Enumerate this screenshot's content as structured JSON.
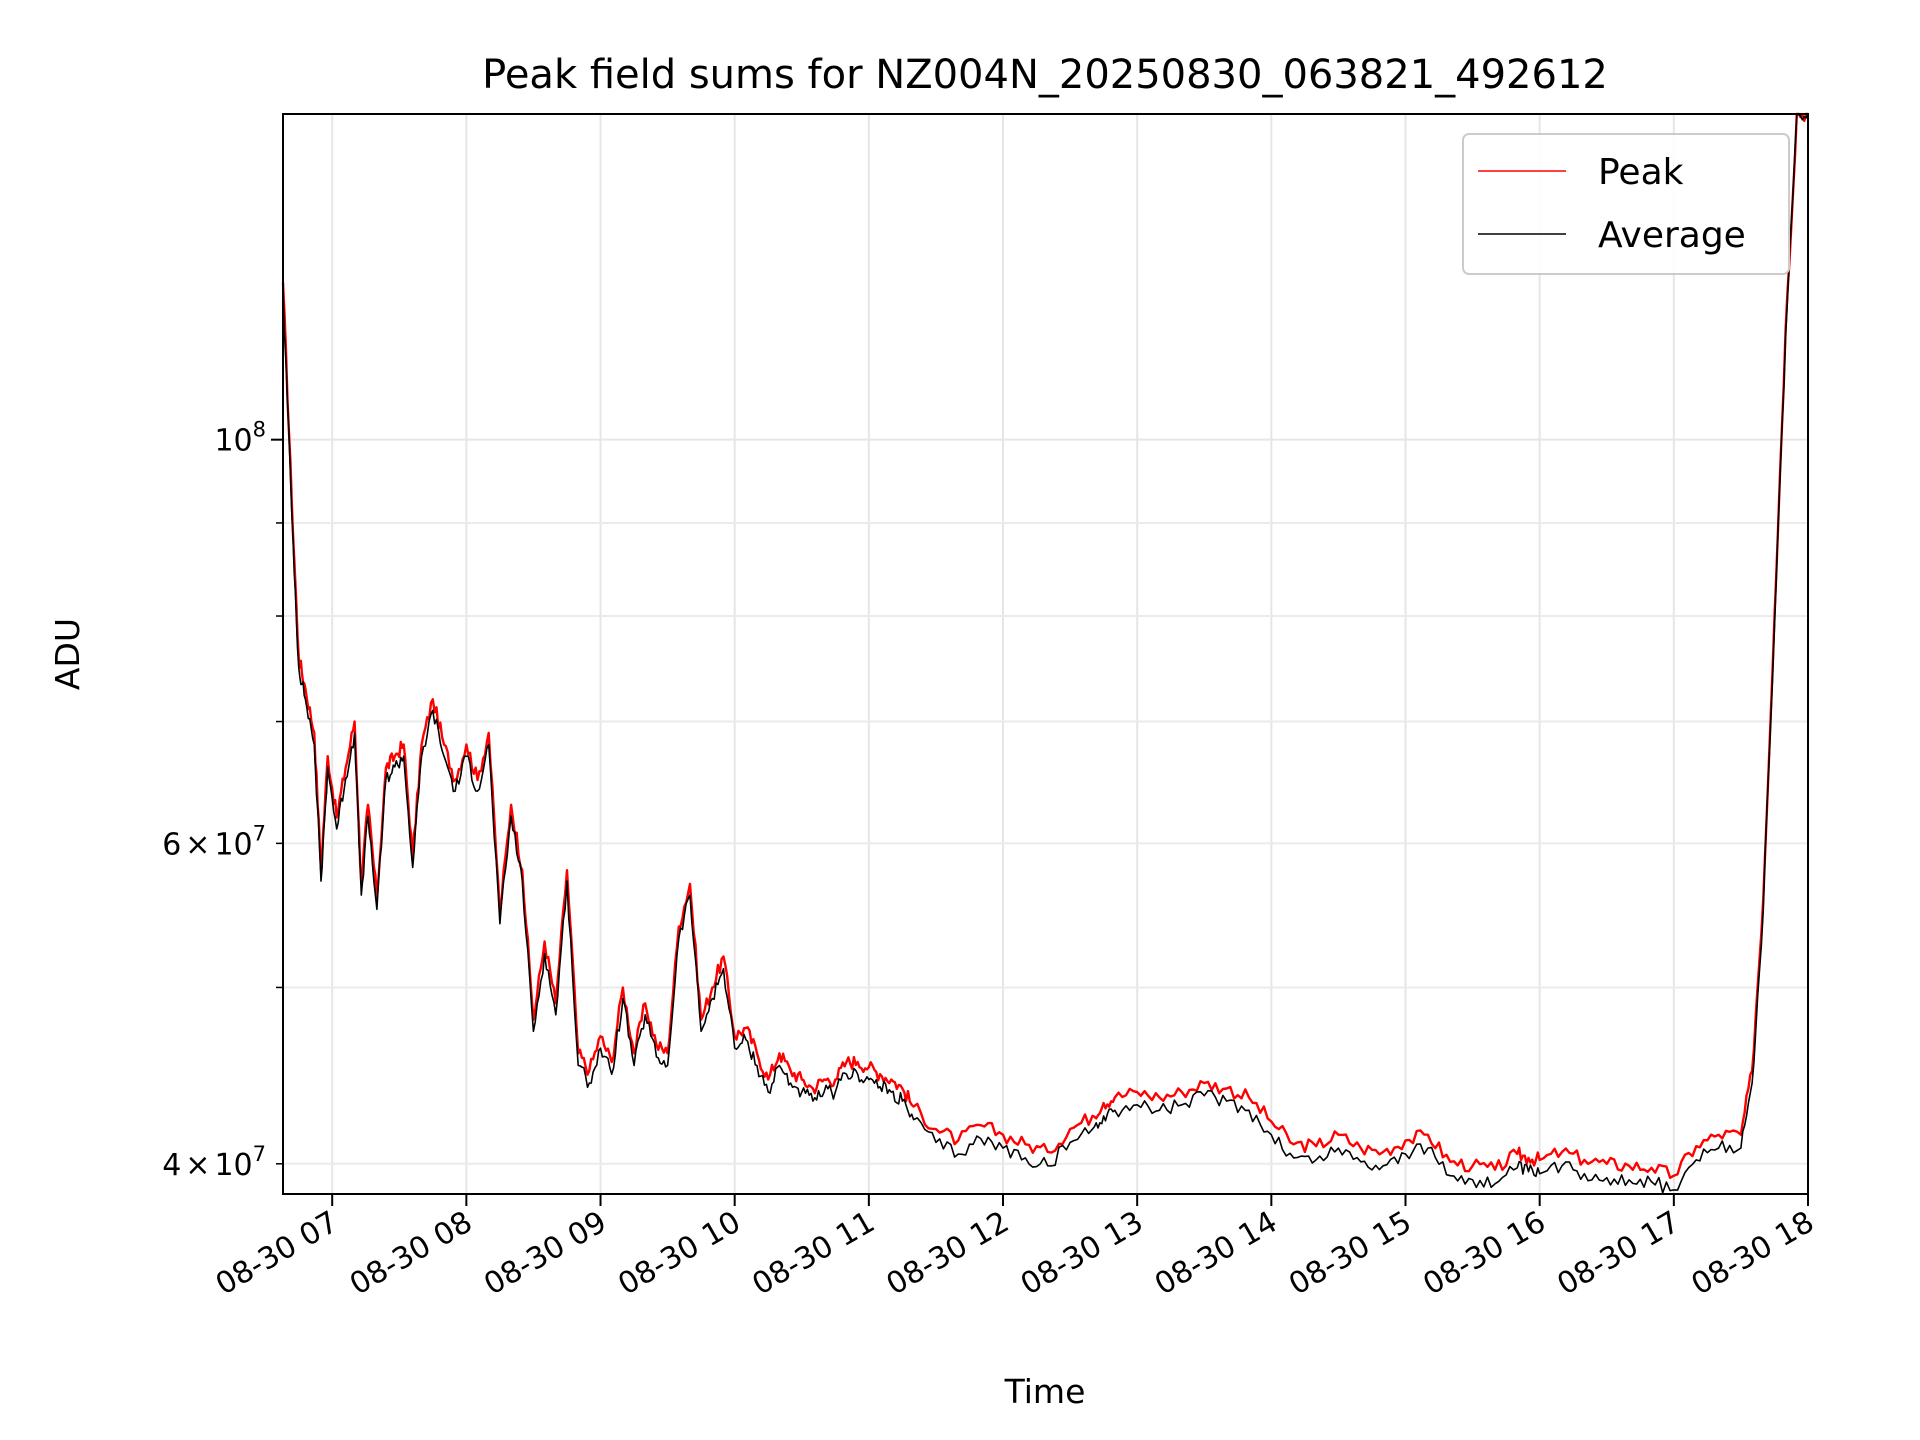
{
  "chart_data": {
    "type": "line",
    "title": "Peak field sums for NZ004N_20250830_063821_492612",
    "xlabel": "Time",
    "ylabel": "ADU",
    "x_axis": {
      "kind": "time",
      "range": [
        "2025-08-30 06:38",
        "2025-08-30 18:00"
      ],
      "ticks": [
        "08-30 07",
        "08-30 08",
        "08-30 09",
        "08-30 10",
        "08-30 11",
        "08-30 12",
        "08-30 13",
        "08-30 14",
        "08-30 15",
        "08-30 16",
        "08-30 17",
        "08-30 18"
      ]
    },
    "y_axis": {
      "scale": "log",
      "range": [
        38500000,
        151000000
      ],
      "major_ticks": [
        {
          "value": 100000000,
          "mantissa": "",
          "exponent": "8",
          "base": "10"
        }
      ],
      "minor_ticks": [
        {
          "value": 40000000,
          "mantissa": "4",
          "exponent": "7",
          "base": "10"
        },
        {
          "value": 50000000,
          "mantissa": "",
          "exponent": "",
          "base": ""
        },
        {
          "value": 60000000,
          "mantissa": "6",
          "exponent": "7",
          "base": "10"
        },
        {
          "value": 70000000,
          "mantissa": "",
          "exponent": "",
          "base": ""
        },
        {
          "value": 80000000,
          "mantissa": "",
          "exponent": "",
          "base": ""
        },
        {
          "value": 90000000,
          "mantissa": "",
          "exponent": "",
          "base": ""
        }
      ],
      "times_sign": "×"
    },
    "grid": true,
    "legend_placement": "top-right",
    "series": [
      {
        "name": "Peak",
        "color": "#ff0000",
        "x": [
          "2025-08-30 06:38",
          "2025-08-30 06:42",
          "2025-08-30 06:45",
          "2025-08-30 06:48",
          "2025-08-30 06:52",
          "2025-08-30 06:55",
          "2025-08-30 06:58",
          "2025-08-30 07:02",
          "2025-08-30 07:06",
          "2025-08-30 07:10",
          "2025-08-30 07:13",
          "2025-08-30 07:16",
          "2025-08-30 07:20",
          "2025-08-30 07:24",
          "2025-08-30 07:28",
          "2025-08-30 07:32",
          "2025-08-30 07:36",
          "2025-08-30 07:40",
          "2025-08-30 07:45",
          "2025-08-30 07:50",
          "2025-08-30 07:55",
          "2025-08-30 08:00",
          "2025-08-30 08:05",
          "2025-08-30 08:10",
          "2025-08-30 08:15",
          "2025-08-30 08:20",
          "2025-08-30 08:25",
          "2025-08-30 08:30",
          "2025-08-30 08:35",
          "2025-08-30 08:40",
          "2025-08-30 08:45",
          "2025-08-30 08:50",
          "2025-08-30 08:55",
          "2025-08-30 09:00",
          "2025-08-30 09:05",
          "2025-08-30 09:10",
          "2025-08-30 09:15",
          "2025-08-30 09:20",
          "2025-08-30 09:25",
          "2025-08-30 09:30",
          "2025-08-30 09:35",
          "2025-08-30 09:40",
          "2025-08-30 09:45",
          "2025-08-30 09:50",
          "2025-08-30 09:55",
          "2025-08-30 10:00",
          "2025-08-30 10:05",
          "2025-08-30 10:10",
          "2025-08-30 10:15",
          "2025-08-30 10:20",
          "2025-08-30 10:25",
          "2025-08-30 10:30",
          "2025-08-30 10:35",
          "2025-08-30 10:40",
          "2025-08-30 10:45",
          "2025-08-30 10:50",
          "2025-08-30 10:55",
          "2025-08-30 11:00",
          "2025-08-30 11:05",
          "2025-08-30 11:10",
          "2025-08-30 11:15",
          "2025-08-30 11:20",
          "2025-08-30 11:30",
          "2025-08-30 11:40",
          "2025-08-30 11:50",
          "2025-08-30 12:00",
          "2025-08-30 12:10",
          "2025-08-30 12:20",
          "2025-08-30 12:30",
          "2025-08-30 12:40",
          "2025-08-30 12:45",
          "2025-08-30 12:50",
          "2025-08-30 13:00",
          "2025-08-30 13:10",
          "2025-08-30 13:20",
          "2025-08-30 13:30",
          "2025-08-30 13:40",
          "2025-08-30 13:50",
          "2025-08-30 14:00",
          "2025-08-30 14:10",
          "2025-08-30 14:20",
          "2025-08-30 14:30",
          "2025-08-30 14:40",
          "2025-08-30 14:50",
          "2025-08-30 15:00",
          "2025-08-30 15:10",
          "2025-08-30 15:20",
          "2025-08-30 15:30",
          "2025-08-30 15:40",
          "2025-08-30 15:50",
          "2025-08-30 15:55",
          "2025-08-30 16:00",
          "2025-08-30 16:10",
          "2025-08-30 16:20",
          "2025-08-30 16:30",
          "2025-08-30 16:40",
          "2025-08-30 16:50",
          "2025-08-30 17:00",
          "2025-08-30 17:10",
          "2025-08-30 17:20",
          "2025-08-30 17:30",
          "2025-08-30 17:35",
          "2025-08-30 17:40",
          "2025-08-30 17:45",
          "2025-08-30 17:50",
          "2025-08-30 17:55",
          "2025-08-30 18:00"
        ],
        "y": [
          122000000,
          92000000,
          76000000,
          73000000,
          69000000,
          58000000,
          67000000,
          62000000,
          66000000,
          70000000,
          57000000,
          63000000,
          56000000,
          66000000,
          67000000,
          68000000,
          59000000,
          68000000,
          72000000,
          68000000,
          65000000,
          68000000,
          65000000,
          69000000,
          55000000,
          63000000,
          58000000,
          48000000,
          53000000,
          49000000,
          58000000,
          46000000,
          45000000,
          47000000,
          45500000,
          50000000,
          46000000,
          49000000,
          46500000,
          46000000,
          54000000,
          57000000,
          48000000,
          50000000,
          52000000,
          47000000,
          47500000,
          46000000,
          44500000,
          46000000,
          45000000,
          44500000,
          44000000,
          44500000,
          44500000,
          45500000,
          45500000,
          45200000,
          44800000,
          44500000,
          44000000,
          43000000,
          41800000,
          41200000,
          42000000,
          41500000,
          41000000,
          40600000,
          41800000,
          42500000,
          43200000,
          43500000,
          43800000,
          43500000,
          43800000,
          44300000,
          44000000,
          43500000,
          42200000,
          41000000,
          40900000,
          41500000,
          40800000,
          40600000,
          41200000,
          41500000,
          40100000,
          39900000,
          39700000,
          40500000,
          40300000,
          40200000,
          40600000,
          40200000,
          40000000,
          39900000,
          39800000,
          39400000,
          40900000,
          41500000,
          41500000,
          45000000,
          56000000,
          80000000,
          115000000,
          151000000,
          151000000
        ]
      },
      {
        "name": "Average",
        "color": "#000000",
        "x": [
          "2025-08-30 06:38",
          "2025-08-30 06:42",
          "2025-08-30 06:45",
          "2025-08-30 06:48",
          "2025-08-30 06:52",
          "2025-08-30 06:55",
          "2025-08-30 06:58",
          "2025-08-30 07:02",
          "2025-08-30 07:06",
          "2025-08-30 07:10",
          "2025-08-30 07:13",
          "2025-08-30 07:16",
          "2025-08-30 07:20",
          "2025-08-30 07:24",
          "2025-08-30 07:28",
          "2025-08-30 07:32",
          "2025-08-30 07:36",
          "2025-08-30 07:40",
          "2025-08-30 07:45",
          "2025-08-30 07:50",
          "2025-08-30 07:55",
          "2025-08-30 08:00",
          "2025-08-30 08:05",
          "2025-08-30 08:10",
          "2025-08-30 08:15",
          "2025-08-30 08:20",
          "2025-08-30 08:25",
          "2025-08-30 08:30",
          "2025-08-30 08:35",
          "2025-08-30 08:40",
          "2025-08-30 08:45",
          "2025-08-30 08:50",
          "2025-08-30 08:55",
          "2025-08-30 09:00",
          "2025-08-30 09:05",
          "2025-08-30 09:10",
          "2025-08-30 09:15",
          "2025-08-30 09:20",
          "2025-08-30 09:25",
          "2025-08-30 09:30",
          "2025-08-30 09:35",
          "2025-08-30 09:40",
          "2025-08-30 09:45",
          "2025-08-30 09:50",
          "2025-08-30 09:55",
          "2025-08-30 10:00",
          "2025-08-30 10:05",
          "2025-08-30 10:10",
          "2025-08-30 10:15",
          "2025-08-30 10:20",
          "2025-08-30 10:25",
          "2025-08-30 10:30",
          "2025-08-30 10:35",
          "2025-08-30 10:40",
          "2025-08-30 10:45",
          "2025-08-30 10:50",
          "2025-08-30 10:55",
          "2025-08-30 11:00",
          "2025-08-30 11:05",
          "2025-08-30 11:10",
          "2025-08-30 11:15",
          "2025-08-30 11:20",
          "2025-08-30 11:30",
          "2025-08-30 11:40",
          "2025-08-30 11:50",
          "2025-08-30 12:00",
          "2025-08-30 12:10",
          "2025-08-30 12:20",
          "2025-08-30 12:30",
          "2025-08-30 12:40",
          "2025-08-30 12:45",
          "2025-08-30 12:50",
          "2025-08-30 13:00",
          "2025-08-30 13:10",
          "2025-08-30 13:20",
          "2025-08-30 13:30",
          "2025-08-30 13:40",
          "2025-08-30 13:50",
          "2025-08-30 14:00",
          "2025-08-30 14:10",
          "2025-08-30 14:20",
          "2025-08-30 14:30",
          "2025-08-30 14:40",
          "2025-08-30 14:50",
          "2025-08-30 15:00",
          "2025-08-30 15:10",
          "2025-08-30 15:20",
          "2025-08-30 15:30",
          "2025-08-30 15:40",
          "2025-08-30 15:50",
          "2025-08-30 15:55",
          "2025-08-30 16:00",
          "2025-08-30 16:10",
          "2025-08-30 16:20",
          "2025-08-30 16:30",
          "2025-08-30 16:40",
          "2025-08-30 16:50",
          "2025-08-30 17:00",
          "2025-08-30 17:10",
          "2025-08-30 17:20",
          "2025-08-30 17:30",
          "2025-08-30 17:35",
          "2025-08-30 17:40",
          "2025-08-30 17:45",
          "2025-08-30 17:50",
          "2025-08-30 17:55",
          "2025-08-30 18:00"
        ],
        "y": [
          120500000,
          90800000,
          75000000,
          72000000,
          68000000,
          57200000,
          66100000,
          61100000,
          65100000,
          69000000,
          56200000,
          62100000,
          55200000,
          65100000,
          66100000,
          67000000,
          58200000,
          67000000,
          71000000,
          67000000,
          64100000,
          67000000,
          64100000,
          68000000,
          54200000,
          62100000,
          57200000,
          47300000,
          52200000,
          48300000,
          57200000,
          45300000,
          44300000,
          46300000,
          44800000,
          49300000,
          45300000,
          48300000,
          45800000,
          45300000,
          53200000,
          56200000,
          47300000,
          49300000,
          51200000,
          46300000,
          46800000,
          45300000,
          43800000,
          45300000,
          44300000,
          43800000,
          43300000,
          43800000,
          43800000,
          44800000,
          44800000,
          44500000,
          44100000,
          43800000,
          43300000,
          42300000,
          41100000,
          40500000,
          41300000,
          40800000,
          40300000,
          39900000,
          41100000,
          41800000,
          42500000,
          42800000,
          43100000,
          42800000,
          43100000,
          43600000,
          43300000,
          42800000,
          41500000,
          40300000,
          40200000,
          40800000,
          40100000,
          39900000,
          40500000,
          40800000,
          39400000,
          39200000,
          39000000,
          39800000,
          39600000,
          39500000,
          39900000,
          39500000,
          39300000,
          39200000,
          39100000,
          38700000,
          40200000,
          40800000,
          40800000,
          44300000,
          55200000,
          79000000,
          114000000,
          151000000,
          151000000
        ]
      }
    ]
  }
}
